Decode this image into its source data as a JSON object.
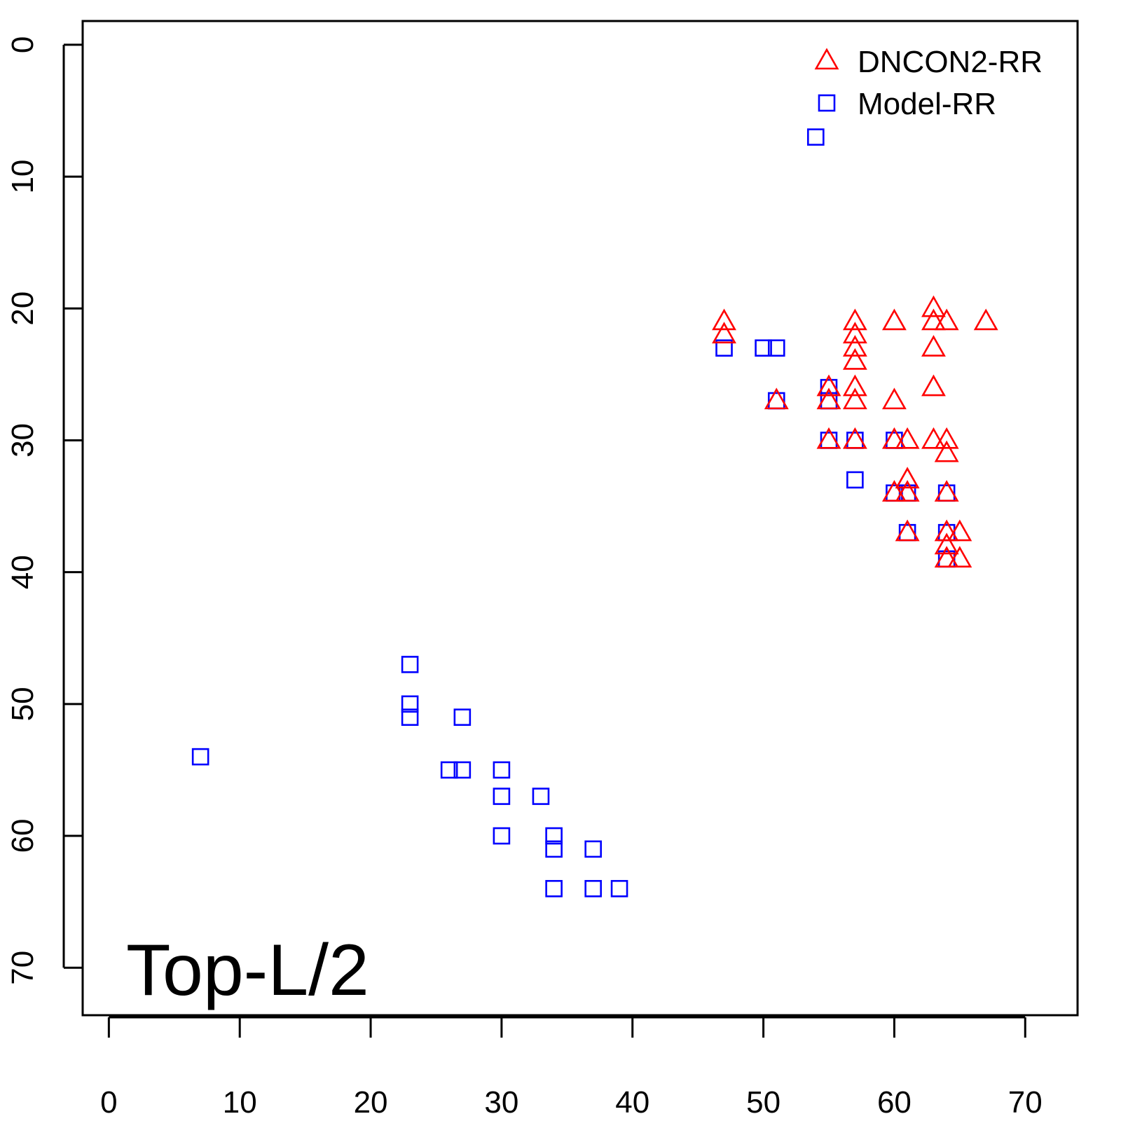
{
  "chart_data": {
    "type": "scatter",
    "title": "",
    "xlabel": "",
    "ylabel": "",
    "xlim": [
      -2,
      74
    ],
    "ylim": [
      -1.8,
      73.6
    ],
    "y_reversed": true,
    "x_ticks": [
      0,
      10,
      20,
      30,
      40,
      50,
      60,
      70
    ],
    "y_ticks": [
      0,
      10,
      20,
      30,
      40,
      50,
      60,
      70
    ],
    "x_tick_labels": [
      "0",
      "10",
      "20",
      "30",
      "40",
      "50",
      "60",
      "70"
    ],
    "y_tick_labels": [
      "0",
      "10",
      "20",
      "30",
      "40",
      "50",
      "60",
      "70"
    ],
    "grid": false,
    "legend_position": "top-right",
    "annotation": "Top-L/2",
    "series": [
      {
        "name": "DNCON2-RR",
        "marker": "triangle",
        "color": "#ff0000",
        "points": [
          [
            47,
            21
          ],
          [
            47,
            22
          ],
          [
            51,
            27
          ],
          [
            55,
            26
          ],
          [
            55,
            27
          ],
          [
            55,
            30
          ],
          [
            57,
            21
          ],
          [
            57,
            22
          ],
          [
            57,
            23
          ],
          [
            57,
            24
          ],
          [
            57,
            26
          ],
          [
            57,
            27
          ],
          [
            57,
            30
          ],
          [
            60,
            21
          ],
          [
            60,
            27
          ],
          [
            60,
            30
          ],
          [
            60,
            34
          ],
          [
            61,
            30
          ],
          [
            61,
            33
          ],
          [
            61,
            34
          ],
          [
            61,
            37
          ],
          [
            63,
            20
          ],
          [
            63,
            21
          ],
          [
            63,
            23
          ],
          [
            63,
            26
          ],
          [
            63,
            30
          ],
          [
            64,
            21
          ],
          [
            64,
            30
          ],
          [
            64,
            31
          ],
          [
            64,
            34
          ],
          [
            64,
            37
          ],
          [
            64,
            38
          ],
          [
            64,
            39
          ],
          [
            65,
            37
          ],
          [
            65,
            39
          ],
          [
            67,
            21
          ]
        ]
      },
      {
        "name": "Model-RR",
        "marker": "square",
        "color": "#0000ff",
        "points": [
          [
            54,
            7
          ],
          [
            47,
            23
          ],
          [
            50,
            23
          ],
          [
            51,
            23
          ],
          [
            51,
            27
          ],
          [
            55,
            26
          ],
          [
            55,
            27
          ],
          [
            55,
            30
          ],
          [
            57,
            30
          ],
          [
            57,
            33
          ],
          [
            60,
            30
          ],
          [
            60,
            34
          ],
          [
            61,
            34
          ],
          [
            61,
            37
          ],
          [
            64,
            34
          ],
          [
            64,
            37
          ],
          [
            64,
            39
          ],
          [
            23,
            47
          ],
          [
            23,
            50
          ],
          [
            23,
            51
          ],
          [
            27,
            51
          ],
          [
            7,
            54
          ],
          [
            26,
            55
          ],
          [
            27,
            55
          ],
          [
            30,
            55
          ],
          [
            30,
            57
          ],
          [
            33,
            57
          ],
          [
            30,
            60
          ],
          [
            34,
            60
          ],
          [
            34,
            61
          ],
          [
            37,
            61
          ],
          [
            34,
            64
          ],
          [
            37,
            64
          ],
          [
            39,
            64
          ]
        ]
      }
    ]
  }
}
